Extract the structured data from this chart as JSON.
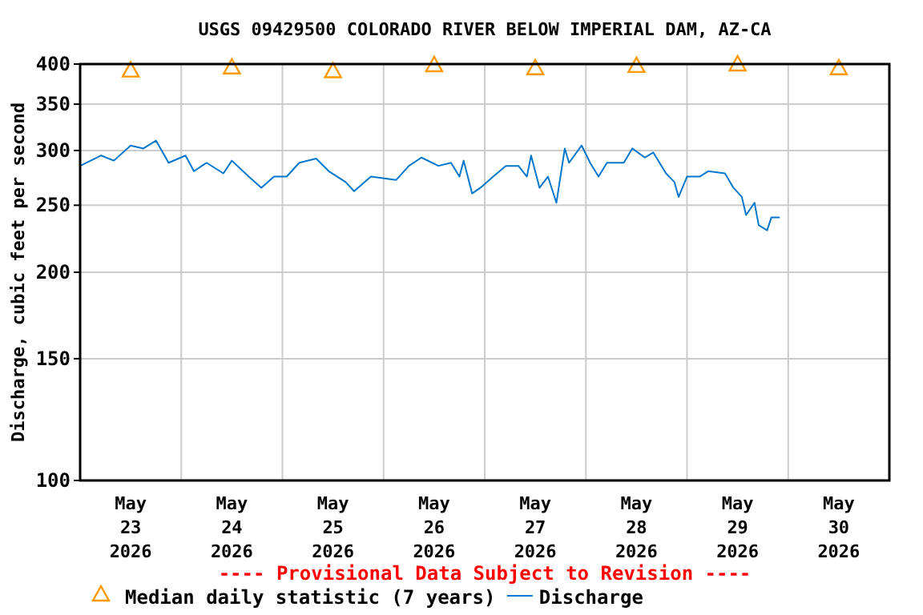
{
  "chart_data": {
    "type": "line",
    "title": "USGS 09429500 COLORADO RIVER BELOW IMPERIAL DAM, AZ-CA",
    "ylabel": "Discharge, cubic feet per second",
    "log": true,
    "grid": true,
    "legend": "bottom",
    "annotations": [
      "---- Provisional Data Subject to Revision ----"
    ],
    "xlim": [
      "2026-05-23T00:00",
      "2026-05-31T00:00"
    ],
    "xticks": [
      {
        "value": "2026-05-23T12:00",
        "label": "May 23 2026"
      },
      {
        "value": "2026-05-24T00:00",
        "label": null
      },
      {
        "value": "2026-05-24T12:00",
        "label": "May 24 2026"
      },
      {
        "value": "2026-05-25T00:00",
        "label": null
      },
      {
        "value": "2026-05-25T12:00",
        "label": "May 25 2026"
      },
      {
        "value": "2026-05-26T00:00",
        "label": null
      },
      {
        "value": "2026-05-26T12:00",
        "label": "May 26 2026"
      },
      {
        "value": "2026-05-27T00:00",
        "label": null
      },
      {
        "value": "2026-05-27T12:00",
        "label": "May 27 2026"
      },
      {
        "value": "2026-05-28T00:00",
        "label": null
      },
      {
        "value": "2026-05-28T12:00",
        "label": "May 28 2026"
      },
      {
        "value": "2026-05-29T00:00",
        "label": null
      },
      {
        "value": "2026-05-29T12:00",
        "label": "May 29 2026"
      },
      {
        "value": "2026-05-30T00:00",
        "label": null
      },
      {
        "value": "2026-05-30T12:00",
        "label": "May 30 2026"
      }
    ],
    "ylim": [
      100,
      400
    ],
    "yticks": [
      100,
      150,
      200,
      250,
      300,
      350,
      400
    ],
    "series": [
      {
        "name": "Median daily statistic (7 years)",
        "type": "scatter",
        "marker": "triangle",
        "color": "#ff9900",
        "x": [
          "2026-05-23T12:00",
          "2026-05-24T12:00",
          "2026-05-25T12:00",
          "2026-05-26T12:00",
          "2026-05-27T12:00",
          "2026-05-28T12:00",
          "2026-05-29T12:00",
          "2026-05-30T12:00"
        ],
        "values": [
          392,
          396,
          391,
          399,
          395,
          398,
          400,
          395
        ]
      },
      {
        "name": "Discharge",
        "marker": "none",
        "line_style": "solid",
        "color": "#0077cc",
        "x": [
          "2026-05-23T00:00",
          "2026-05-23T05:00",
          "2026-05-23T08:00",
          "2026-05-23T12:00",
          "2026-05-23T15:00",
          "2026-05-23T18:00",
          "2026-05-23T21:00",
          "2026-05-24T01:00",
          "2026-05-24T03:00",
          "2026-05-24T06:00",
          "2026-05-24T10:00",
          "2026-05-24T12:00",
          "2026-05-24T16:00",
          "2026-05-24T19:00",
          "2026-05-24T22:00",
          "2026-05-25T01:00",
          "2026-05-25T04:00",
          "2026-05-25T08:00",
          "2026-05-25T11:00",
          "2026-05-25T15:00",
          "2026-05-25T17:00",
          "2026-05-25T21:00",
          "2026-05-26T03:00",
          "2026-05-26T06:00",
          "2026-05-26T09:00",
          "2026-05-26T13:00",
          "2026-05-26T16:00",
          "2026-05-26T18:00",
          "2026-05-26T19:00",
          "2026-05-26T21:00",
          "2026-05-26T23:00",
          "2026-05-27T02:00",
          "2026-05-27T05:00",
          "2026-05-27T08:00",
          "2026-05-27T10:00",
          "2026-05-27T11:00",
          "2026-05-27T13:00",
          "2026-05-27T15:00",
          "2026-05-27T17:00",
          "2026-05-27T19:00",
          "2026-05-27T20:00",
          "2026-05-27T23:00",
          "2026-05-28T01:00",
          "2026-05-28T03:00",
          "2026-05-28T05:00",
          "2026-05-28T09:00",
          "2026-05-28T11:00",
          "2026-05-28T14:00",
          "2026-05-28T16:00",
          "2026-05-28T19:00",
          "2026-05-28T21:00",
          "2026-05-28T22:00",
          "2026-05-29T00:00",
          "2026-05-29T03:00",
          "2026-05-29T05:00",
          "2026-05-29T09:00",
          "2026-05-29T11:00",
          "2026-05-29T13:00",
          "2026-05-29T14:00",
          "2026-05-29T16:00",
          "2026-05-29T17:00",
          "2026-05-29T19:00",
          "2026-05-29T20:00",
          "2026-05-29T22:00"
        ],
        "values": [
          285,
          295,
          290,
          305,
          302,
          310,
          288,
          295,
          280,
          288,
          278,
          290,
          275,
          265,
          275,
          275,
          288,
          292,
          280,
          270,
          262,
          275,
          272,
          285,
          293,
          285,
          288,
          275,
          290,
          260,
          265,
          275,
          285,
          285,
          275,
          295,
          265,
          275,
          252,
          302,
          288,
          305,
          288,
          275,
          288,
          288,
          302,
          293,
          298,
          278,
          270,
          257,
          275,
          275,
          280,
          278,
          265,
          257,
          242,
          252,
          234,
          230,
          240,
          240
        ]
      }
    ]
  }
}
